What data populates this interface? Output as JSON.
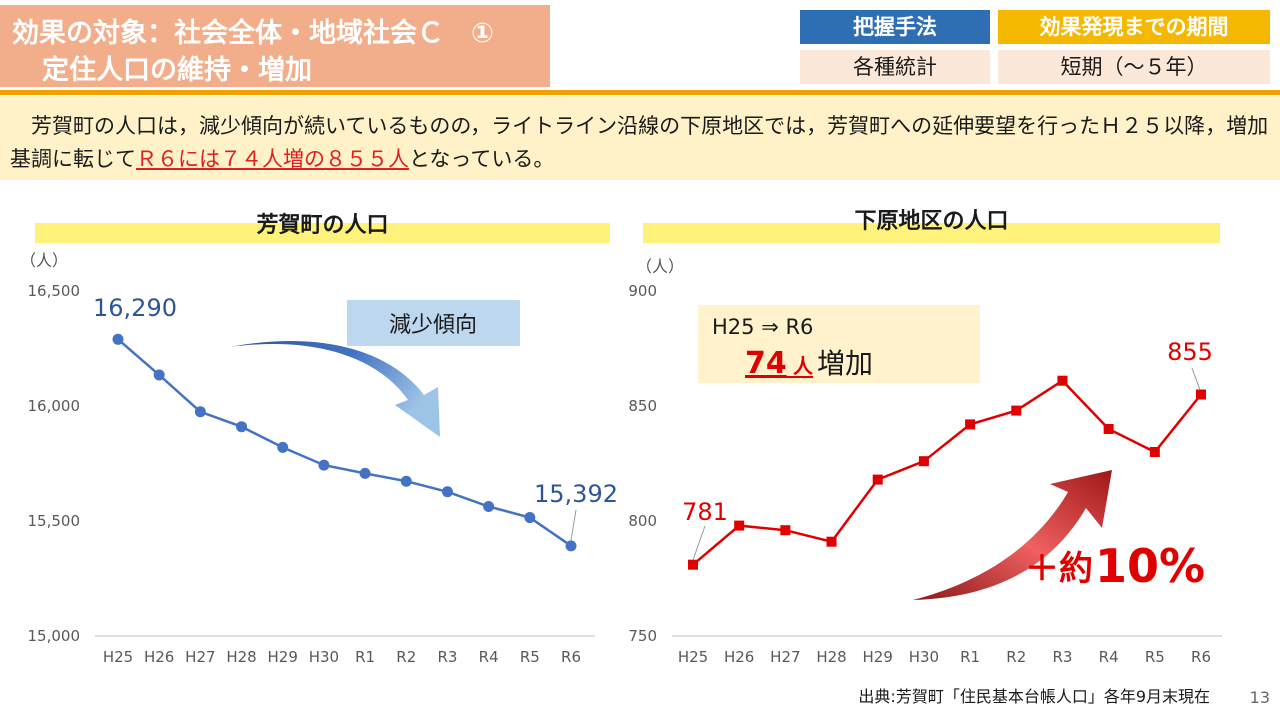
{
  "header": {
    "title_line1": "効果の対象：社会全体・地域社会Ｃ　①",
    "title_line2": "定住人口の維持・増加",
    "method_label": "把握手法",
    "period_label": "効果発現までの期間",
    "method_value": "各種統計",
    "period_value": "短期（～５年）"
  },
  "summary": {
    "text_before": "　芳賀町の人口は，減少傾向が続いているものの，ライトライン沿線の下原地区では，芳賀町への延伸要望を行ったＨ２５以降，増加基調に転じて",
    "text_highlight": "Ｒ６には７４人増の８５５人",
    "text_after": "となっている。"
  },
  "footer": {
    "source": "出典:芳賀町「住民基本台帳人口」各年9月末現在",
    "page_number": "13"
  },
  "colors": {
    "blue_series": "#4472c4",
    "red_series": "#e00000",
    "accent_yellow": "#fff27a"
  },
  "annotations": {
    "left_arrow_label": "減少傾向",
    "left_first_label": "16,290",
    "left_last_label": "15,392",
    "right_box_line1": "H25 ⇒ R6",
    "right_box_num": "74",
    "right_box_unit": "人",
    "right_box_suffix": "増加",
    "right_first_label": "781",
    "right_last_label": "855",
    "right_growth_prefix": "＋約",
    "right_growth_value": "10%"
  },
  "chart_data": [
    {
      "type": "line",
      "title": "芳賀町の人口",
      "ylabel": "（人）",
      "categories": [
        "H25",
        "H26",
        "H27",
        "H28",
        "H29",
        "H30",
        "R1",
        "R2",
        "R3",
        "R4",
        "R5",
        "R6"
      ],
      "series": [
        {
          "values": [
            16290,
            16135,
            15975,
            15910,
            15820,
            15743,
            15707,
            15673,
            15627,
            15563,
            15515,
            15392
          ]
        }
      ],
      "ylim": [
        15000,
        16500
      ],
      "yticks": [
        "15,000",
        "15,500",
        "16,000",
        "16,500"
      ],
      "grid": false
    },
    {
      "type": "line",
      "title": "下原地区の人口",
      "ylabel": "（人）",
      "categories": [
        "H25",
        "H26",
        "H27",
        "H28",
        "H29",
        "H30",
        "R1",
        "R2",
        "R3",
        "R4",
        "R5",
        "R6"
      ],
      "series": [
        {
          "values": [
            781,
            798,
            796,
            791,
            818,
            826,
            842,
            848,
            861,
            840,
            830,
            855
          ]
        }
      ],
      "ylim": [
        750,
        900
      ],
      "yticks": [
        "750",
        "800",
        "850",
        "900"
      ],
      "grid": false
    }
  ]
}
